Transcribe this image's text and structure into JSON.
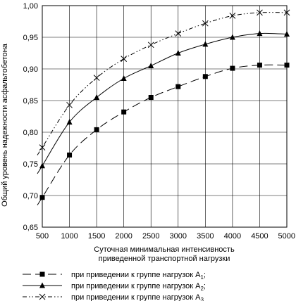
{
  "chart_data": {
    "type": "line",
    "title": "",
    "xlabel": "Суточная минимальная интенсивность\nприведенной транспортной нагрузки",
    "ylabel": "Общий уровень надежности асфальтобетона",
    "x": [
      500,
      1000,
      1500,
      2000,
      2500,
      3000,
      3500,
      4000,
      4500,
      5000
    ],
    "x_tick_labels": [
      "500",
      "1000",
      "1500",
      "2000",
      "2500",
      "3000",
      "3500",
      "4000",
      "4500",
      "5000"
    ],
    "y_ticks": [
      0.65,
      0.7,
      0.75,
      0.8,
      0.85,
      0.9,
      0.95,
      1.0
    ],
    "y_tick_labels": [
      "0,65",
      "0,70",
      "0,75",
      "0,80",
      "0,85",
      "0,90",
      "0,95",
      "1,00"
    ],
    "xlim": [
      500,
      5000
    ],
    "ylim": [
      0.65,
      1.0
    ],
    "grid": true,
    "legend_position": "bottom",
    "series": [
      {
        "name": "при приведении к группе нагрузок А",
        "subscript": "1",
        "suffix": ";",
        "marker": "square",
        "dash": "12,6",
        "values": [
          0.697,
          0.764,
          0.804,
          0.832,
          0.855,
          0.872,
          0.888,
          0.901,
          0.906,
          0.906
        ]
      },
      {
        "name": "при приведении к группе нагрузок А",
        "subscript": "2",
        "suffix": ";",
        "marker": "triangle",
        "dash": "",
        "values": [
          0.747,
          0.816,
          0.855,
          0.885,
          0.905,
          0.925,
          0.939,
          0.95,
          0.956,
          0.955
        ]
      },
      {
        "name": "при приведении к группе нагрузок А",
        "subscript": "3",
        "suffix": "",
        "marker": "cross",
        "dash": "6,3,1.5,3,1.5,3",
        "values": [
          0.776,
          0.843,
          0.886,
          0.916,
          0.938,
          0.956,
          0.972,
          0.984,
          0.989,
          0.989
        ]
      }
    ]
  }
}
